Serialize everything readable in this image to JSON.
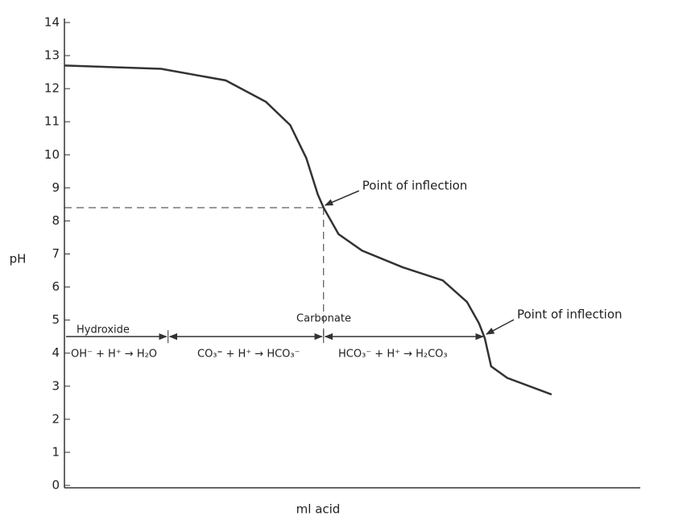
{
  "chart_data": {
    "type": "line",
    "xlabel": "ml acid",
    "ylabel": "pH",
    "xlim": [
      0,
      100
    ],
    "ylim": [
      0,
      14
    ],
    "yticks": [
      0,
      1,
      2,
      3,
      4,
      5,
      6,
      7,
      8,
      9,
      10,
      11,
      12,
      13,
      14
    ],
    "series": [
      {
        "color": "#333333",
        "x": [
          0,
          16.8,
          28,
          35,
          39.2,
          42,
          44,
          45,
          47.6,
          51.7,
          58.7,
          65.7,
          69.9,
          72,
          73,
          74.1,
          76.9,
          84.6
        ],
        "values": [
          12.7,
          12.6,
          12.25,
          11.6,
          10.9,
          9.9,
          8.8,
          8.4,
          7.6,
          7.1,
          6.6,
          6.2,
          5.55,
          4.9,
          4.45,
          3.6,
          3.25,
          2.75
        ]
      }
    ],
    "inflection_points": [
      {
        "x": 45,
        "y": 8.4,
        "label": "Point of inflection"
      },
      {
        "x": 73,
        "y": 4.5,
        "label": "Point of inflection"
      }
    ],
    "region_line": {
      "y": 4.5,
      "x": [
        0,
        18,
        45,
        73
      ]
    },
    "region_labels": [
      "Hydroxide",
      "Carbonate"
    ],
    "equations": [
      "OH⁻ + H⁺ → H₂O",
      "CO₃⁼ + H⁺ → HCO₃⁻",
      "HCO₃⁻ + H⁺ → H₂CO₃"
    ]
  }
}
